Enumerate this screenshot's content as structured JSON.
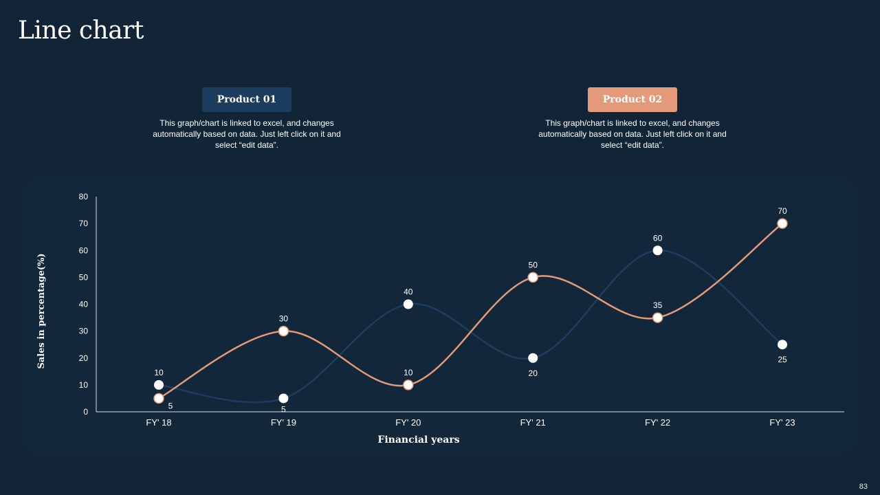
{
  "slide": {
    "title": "Line chart",
    "page_number": "83"
  },
  "legend": [
    {
      "label": "Product 01",
      "description": "This graph/chart is linked to excel, and changes automatically based on data. Just left click on it and select “edit data”."
    },
    {
      "label": "Product 02",
      "description": "This graph/chart is linked to excel, and changes automatically based on data. Just left click on it and select “edit data”."
    }
  ],
  "colors": {
    "background": "#112536",
    "panel": "#122739",
    "product_01": "#1c3d5e",
    "product_02": "#e39a78",
    "marker_fill": "#ffffff"
  },
  "chart_data": {
    "type": "line",
    "smooth": true,
    "categories": [
      "FY' 18",
      "FY' 19",
      "FY' 20",
      "FY' 21",
      "FY' 22",
      "FY' 23"
    ],
    "series": [
      {
        "name": "Product 01",
        "values": [
          10,
          5,
          40,
          20,
          60,
          25
        ],
        "color": "#1c3d5e"
      },
      {
        "name": "Product 02",
        "values": [
          5,
          30,
          10,
          50,
          35,
          70
        ],
        "color": "#e39a78"
      }
    ],
    "xlabel": "Financial years",
    "ylabel": "Sales in percentage(%)",
    "ylim": [
      0,
      80
    ],
    "yticks": [
      0,
      10,
      20,
      30,
      40,
      50,
      60,
      70,
      80
    ],
    "grid": false,
    "data_labels": true
  }
}
